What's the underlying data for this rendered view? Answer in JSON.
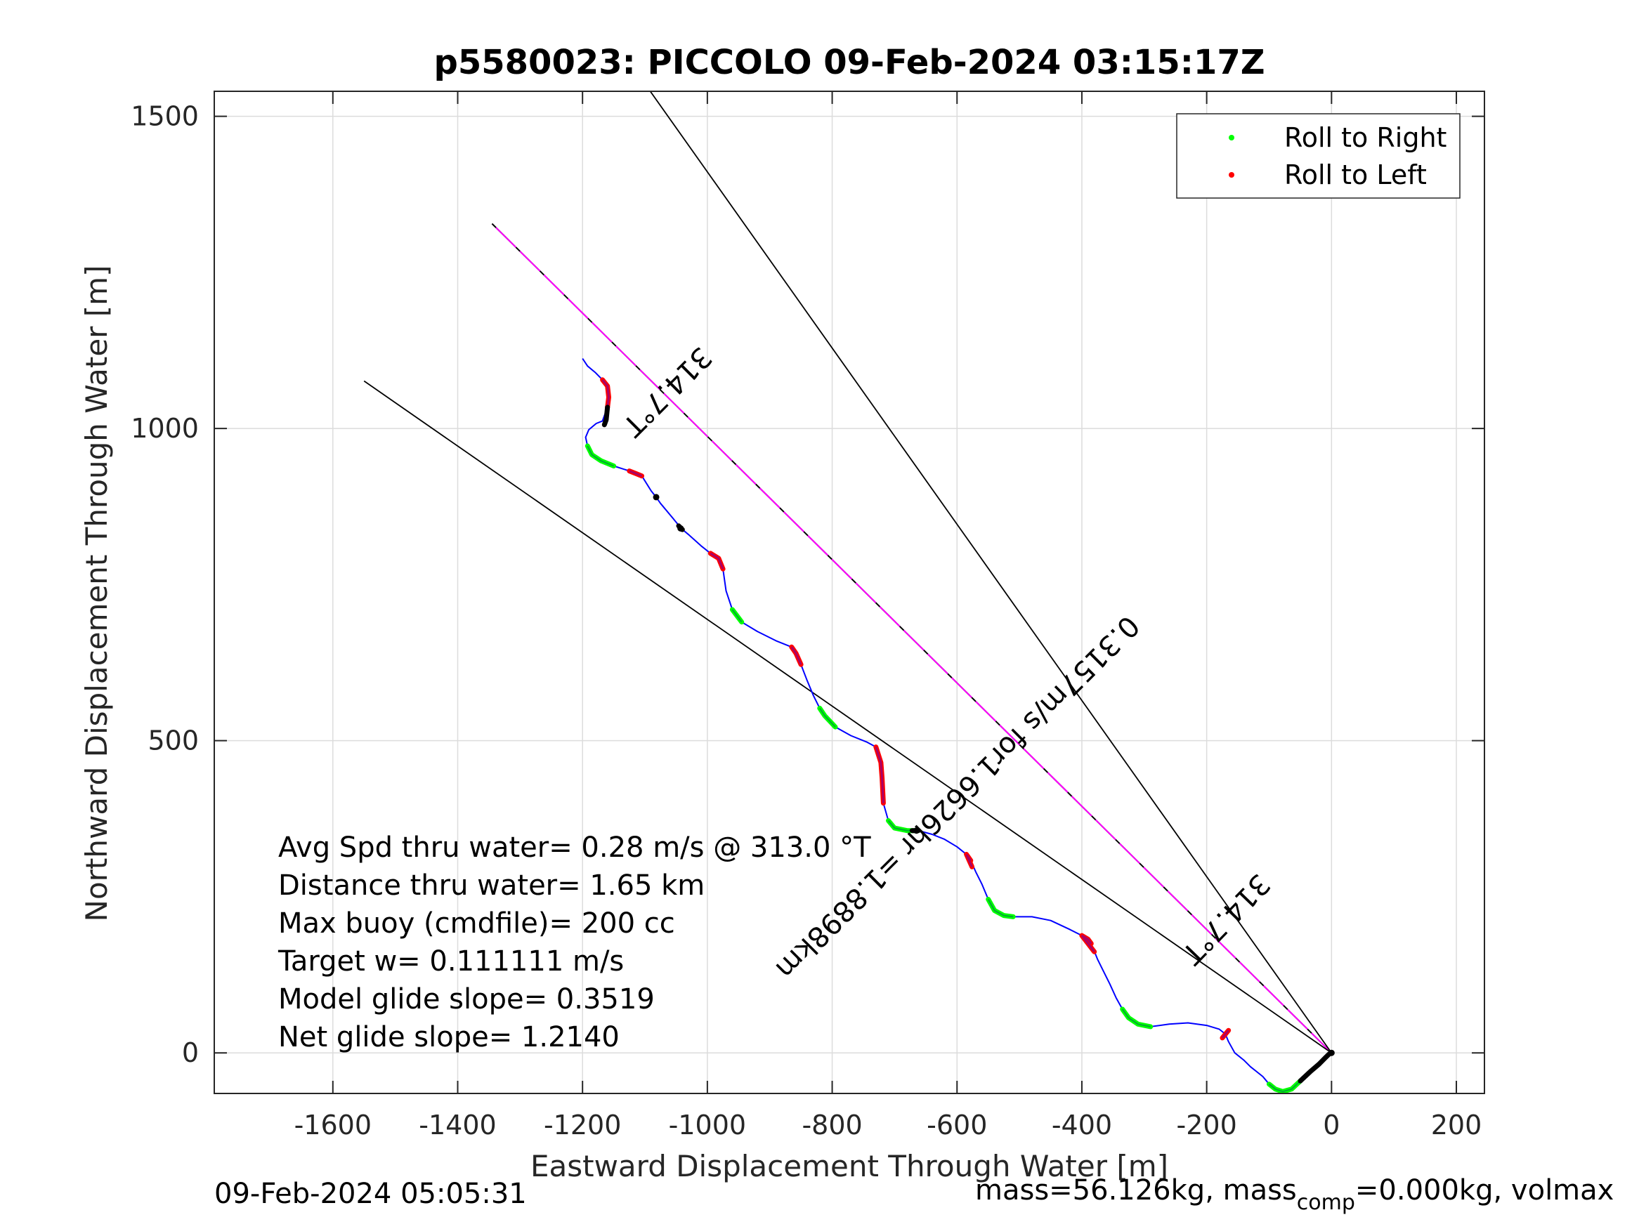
{
  "chart_data": {
    "type": "line",
    "title": "p5580023: PICCOLO 09-Feb-2024 03:15:17Z",
    "xlabel": "Eastward Displacement Through Water [m]",
    "ylabel": "Northward Displacement Through Water [m]",
    "xlim": [
      -1790,
      245
    ],
    "ylim": [
      -65,
      1540
    ],
    "xticks": [
      -1600,
      -1400,
      -1200,
      -1000,
      -800,
      -600,
      -400,
      -200,
      0,
      200
    ],
    "yticks": [
      0,
      500,
      1000,
      1500
    ],
    "grid": true,
    "legend_position": "top-right",
    "legend": [
      {
        "label": "Roll to Right",
        "color": "#00ff00"
      },
      {
        "label": "Roll to Left",
        "color": "#ff0000"
      }
    ],
    "colors": {
      "track": "#0000ff",
      "course_line": "#ff00ff",
      "roll_right": "#00ff00",
      "roll_left": "#ff0000",
      "roll_left_overlay": "#aa0066",
      "bounds": "#000000"
    },
    "track": [
      [
        0,
        0
      ],
      [
        -4,
        -2
      ],
      [
        -10,
        -8
      ],
      [
        -20,
        -18
      ],
      [
        -34,
        -30
      ],
      [
        -50,
        -45
      ],
      [
        -64,
        -58
      ],
      [
        -78,
        -62
      ],
      [
        -90,
        -58
      ],
      [
        -100,
        -50
      ],
      [
        -110,
        -38
      ],
      [
        -120,
        -30
      ],
      [
        -130,
        -22
      ],
      [
        -140,
        -12
      ],
      [
        -155,
        0
      ],
      [
        -165,
        18
      ],
      [
        -170,
        30
      ],
      [
        -180,
        38
      ],
      [
        -200,
        44
      ],
      [
        -230,
        48
      ],
      [
        -260,
        46
      ],
      [
        -290,
        42
      ],
      [
        -310,
        46
      ],
      [
        -325,
        56
      ],
      [
        -335,
        70
      ],
      [
        -345,
        88
      ],
      [
        -355,
        110
      ],
      [
        -365,
        130
      ],
      [
        -375,
        150
      ],
      [
        -385,
        175
      ],
      [
        -390,
        182
      ],
      [
        -400,
        188
      ],
      [
        -420,
        198
      ],
      [
        -450,
        212
      ],
      [
        -480,
        218
      ],
      [
        -510,
        218
      ],
      [
        -525,
        220
      ],
      [
        -540,
        228
      ],
      [
        -550,
        246
      ],
      [
        -560,
        270
      ],
      [
        -570,
        290
      ],
      [
        -578,
        308
      ],
      [
        -585,
        318
      ],
      [
        -600,
        330
      ],
      [
        -620,
        342
      ],
      [
        -640,
        350
      ],
      [
        -662,
        356
      ],
      [
        -680,
        356
      ],
      [
        -700,
        360
      ],
      [
        -710,
        372
      ],
      [
        -718,
        400
      ],
      [
        -720,
        440
      ],
      [
        -722,
        465
      ],
      [
        -730,
        490
      ],
      [
        -745,
        498
      ],
      [
        -770,
        508
      ],
      [
        -795,
        522
      ],
      [
        -812,
        540
      ],
      [
        -820,
        552
      ],
      [
        -830,
        572
      ],
      [
        -840,
        596
      ],
      [
        -850,
        622
      ],
      [
        -865,
        650
      ],
      [
        -890,
        660
      ],
      [
        -920,
        675
      ],
      [
        -945,
        690
      ],
      [
        -960,
        710
      ],
      [
        -970,
        740
      ],
      [
        -975,
        775
      ],
      [
        -982,
        792
      ],
      [
        -995,
        800
      ],
      [
        -1010,
        812
      ],
      [
        -1030,
        830
      ],
      [
        -1042,
        840
      ],
      [
        -1055,
        856
      ],
      [
        -1075,
        880
      ],
      [
        -1082,
        890
      ],
      [
        -1090,
        900
      ],
      [
        -1105,
        924
      ],
      [
        -1125,
        932
      ],
      [
        -1150,
        940
      ],
      [
        -1170,
        948
      ],
      [
        -1185,
        958
      ],
      [
        -1192,
        972
      ],
      [
        -1195,
        986
      ],
      [
        -1190,
        998
      ],
      [
        -1178,
        1008
      ],
      [
        -1168,
        1012
      ],
      [
        -1160,
        1034
      ],
      [
        -1158,
        1050
      ],
      [
        -1160,
        1068
      ],
      [
        -1168,
        1078
      ],
      [
        -1180,
        1090
      ],
      [
        -1192,
        1100
      ],
      [
        -1200,
        1112
      ]
    ],
    "roll_right_segments": [
      [
        [
          -50,
          -45
        ],
        [
          -64,
          -58
        ],
        [
          -78,
          -62
        ],
        [
          -90,
          -58
        ],
        [
          -100,
          -50
        ]
      ],
      [
        [
          -290,
          42
        ],
        [
          -310,
          46
        ],
        [
          -325,
          56
        ],
        [
          -335,
          70
        ]
      ],
      [
        [
          -510,
          218
        ],
        [
          -525,
          220
        ],
        [
          -540,
          228
        ],
        [
          -550,
          246
        ]
      ],
      [
        [
          -662,
          356
        ],
        [
          -680,
          356
        ],
        [
          -700,
          360
        ],
        [
          -710,
          372
        ]
      ],
      [
        [
          -795,
          522
        ],
        [
          -812,
          540
        ],
        [
          -820,
          552
        ]
      ],
      [
        [
          -945,
          690
        ],
        [
          -960,
          710
        ]
      ],
      [
        [
          -1150,
          940
        ],
        [
          -1170,
          948
        ],
        [
          -1185,
          958
        ],
        [
          -1192,
          972
        ]
      ]
    ],
    "roll_left_segments": [
      [
        [
          -165,
          36
        ],
        [
          -170,
          30
        ],
        [
          -175,
          24
        ]
      ],
      [
        [
          -385,
          175
        ],
        [
          -390,
          182
        ],
        [
          -400,
          188
        ],
        [
          -380,
          162
        ]
      ],
      [
        [
          -578,
          308
        ],
        [
          -585,
          318
        ],
        [
          -576,
          298
        ]
      ],
      [
        [
          -718,
          400
        ],
        [
          -720,
          440
        ],
        [
          -722,
          465
        ],
        [
          -730,
          490
        ]
      ],
      [
        [
          -850,
          622
        ],
        [
          -858,
          640
        ],
        [
          -865,
          650
        ]
      ],
      [
        [
          -975,
          775
        ],
        [
          -982,
          792
        ],
        [
          -995,
          800
        ]
      ],
      [
        [
          -1105,
          924
        ],
        [
          -1115,
          928
        ],
        [
          -1125,
          932
        ]
      ],
      [
        [
          -1160,
          1034
        ],
        [
          -1158,
          1050
        ],
        [
          -1160,
          1068
        ],
        [
          -1168,
          1078
        ]
      ]
    ],
    "dark_segments": [
      [
        [
          0,
          0
        ],
        [
          -4,
          -2
        ],
        [
          -10,
          -8
        ],
        [
          -20,
          -18
        ],
        [
          -34,
          -30
        ],
        [
          -50,
          -45
        ]
      ],
      [
        [
          -1160,
          1034
        ],
        [
          -1162,
          1014
        ],
        [
          -1165,
          1006
        ]
      ],
      [
        [
          -662,
          356
        ],
        [
          -672,
          356
        ]
      ],
      [
        [
          -1040,
          838
        ],
        [
          -1046,
          844
        ]
      ]
    ],
    "dark_points": [
      [
        -1082,
        890
      ],
      [
        -1043,
        840
      ],
      [
        -665,
        356
      ],
      [
        0,
        0
      ]
    ],
    "lines": [
      {
        "name": "course",
        "from": [
          0,
          0
        ],
        "to": [
          -1345,
          1328
        ]
      },
      {
        "name": "upper-bound",
        "from": [
          0,
          0
        ],
        "to": [
          -1095,
          1545
        ]
      },
      {
        "name": "lower-bound",
        "from": [
          0,
          0
        ],
        "to": [
          -1550,
          1076
        ]
      }
    ],
    "annotations": [
      {
        "text": "314.7°T",
        "at": [
          -1075,
          1070
        ],
        "angle": 135
      },
      {
        "text": "0.3157m/s for1.6626hr =1.8898km",
        "at": [
          -610,
          420
        ],
        "angle": 135
      },
      {
        "text": "314.7°T",
        "at": [
          -180,
          225
        ],
        "angle": 134
      }
    ],
    "stats": [
      "Avg Spd thru water=  0.28 m/s @ 313.0 °T",
      "Distance thru water=  1.65 km",
      "Max buoy (cmdfile)= 200 cc",
      "Target w= 0.111111 m/s",
      "Model glide slope= 0.3519",
      "Net glide slope= 1.2140"
    ],
    "footer_left": "09-Feb-2024 05:05:31",
    "footer_right": {
      "part1": "mass=56.126kg, mass",
      "subscript": "comp",
      "part2": "=0.000kg, volmax"
    }
  }
}
